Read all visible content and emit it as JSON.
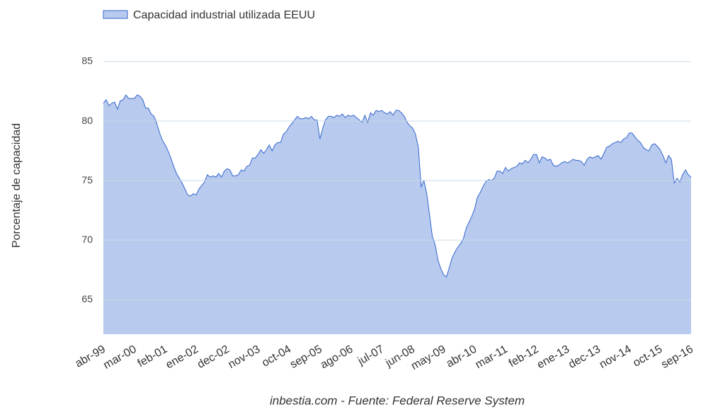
{
  "chart_data": {
    "type": "area",
    "legend_label": "Capacidad industrial utilizada EEUU",
    "y_label": "Porcentaje de capacidad",
    "source": "inbestia.com - Fuente: Federal Reserve System",
    "color": "#3366cc",
    "fill": "#b8caee",
    "ylim": [
      62.1,
      85
    ],
    "yticks": [
      65,
      70,
      75,
      80,
      85
    ],
    "grid": true,
    "categories": [
      "abr-99",
      null,
      null,
      null,
      null,
      null,
      null,
      null,
      null,
      null,
      null,
      "mar-00",
      null,
      null,
      null,
      null,
      null,
      null,
      null,
      null,
      null,
      null,
      "feb-01",
      null,
      null,
      null,
      null,
      null,
      null,
      null,
      null,
      null,
      null,
      "ene-02",
      null,
      null,
      null,
      null,
      null,
      null,
      null,
      null,
      null,
      null,
      "dec-02",
      null,
      null,
      null,
      null,
      null,
      null,
      null,
      null,
      null,
      null,
      "nov-03",
      null,
      null,
      null,
      null,
      null,
      null,
      null,
      null,
      null,
      null,
      "oct-04",
      null,
      null,
      null,
      null,
      null,
      null,
      null,
      null,
      null,
      null,
      "sep-05",
      null,
      null,
      null,
      null,
      null,
      null,
      null,
      null,
      null,
      null,
      "ago-06",
      null,
      null,
      null,
      null,
      null,
      null,
      null,
      null,
      null,
      null,
      "jul-07",
      null,
      null,
      null,
      null,
      null,
      null,
      null,
      null,
      null,
      null,
      "jun-08",
      null,
      null,
      null,
      null,
      null,
      null,
      null,
      null,
      null,
      null,
      "may-09",
      null,
      null,
      null,
      null,
      null,
      null,
      null,
      null,
      null,
      null,
      "abr-10",
      null,
      null,
      null,
      null,
      null,
      null,
      null,
      null,
      null,
      null,
      "mar-11",
      null,
      null,
      null,
      null,
      null,
      null,
      null,
      null,
      null,
      null,
      "feb-12",
      null,
      null,
      null,
      null,
      null,
      null,
      null,
      null,
      null,
      null,
      "ene-13",
      null,
      null,
      null,
      null,
      null,
      null,
      null,
      null,
      null,
      null,
      "dec-13",
      null,
      null,
      null,
      null,
      null,
      null,
      null,
      null,
      null,
      null,
      "nov-14",
      null,
      null,
      null,
      null,
      null,
      null,
      null,
      null,
      null,
      null,
      "oct-15",
      null,
      null,
      null,
      null,
      null,
      null,
      null,
      null,
      null,
      null,
      "sep-16"
    ],
    "values": [
      81.5,
      81.8,
      81.3,
      81.5,
      81.6,
      81.0,
      81.7,
      81.8,
      82.2,
      81.9,
      81.9,
      81.9,
      82.2,
      82.1,
      81.8,
      81.1,
      81.1,
      80.6,
      80.4,
      79.8,
      79.0,
      78.4,
      78.0,
      77.5,
      76.9,
      76.2,
      75.6,
      75.2,
      74.8,
      74.3,
      73.8,
      73.7,
      73.9,
      73.8,
      74.3,
      74.6,
      74.9,
      75.5,
      75.3,
      75.4,
      75.3,
      75.6,
      75.3,
      75.8,
      76.0,
      75.9,
      75.4,
      75.4,
      75.5,
      75.9,
      75.8,
      76.2,
      76.3,
      76.9,
      76.9,
      77.2,
      77.6,
      77.3,
      77.6,
      78.0,
      77.5,
      78.0,
      78.2,
      78.2,
      78.9,
      79.1,
      79.5,
      79.8,
      80.1,
      80.4,
      80.2,
      80.2,
      80.3,
      80.2,
      80.4,
      80.1,
      80.1,
      78.5,
      79.4,
      80.1,
      80.4,
      80.4,
      80.3,
      80.5,
      80.4,
      80.6,
      80.3,
      80.5,
      80.4,
      80.5,
      80.3,
      80.1,
      79.9,
      80.5,
      79.9,
      80.7,
      80.5,
      80.9,
      80.8,
      80.9,
      80.7,
      80.6,
      80.8,
      80.5,
      80.9,
      80.9,
      80.7,
      80.4,
      79.9,
      79.6,
      79.4,
      78.9,
      77.8,
      74.5,
      75.0,
      73.9,
      72.1,
      70.3,
      69.6,
      68.3,
      67.6,
      67.1,
      66.9,
      67.7,
      68.5,
      69.0,
      69.4,
      69.7,
      70.1,
      71.0,
      71.5,
      72.0,
      72.6,
      73.6,
      74.0,
      74.5,
      74.9,
      75.1,
      75.0,
      75.2,
      75.8,
      75.8,
      75.6,
      76.1,
      75.8,
      76.0,
      76.1,
      76.2,
      76.5,
      76.4,
      76.7,
      76.5,
      76.8,
      77.2,
      77.2,
      76.5,
      77.0,
      76.9,
      76.7,
      76.8,
      76.3,
      76.2,
      76.3,
      76.5,
      76.6,
      76.5,
      76.6,
      76.8,
      76.7,
      76.7,
      76.6,
      76.3,
      76.8,
      77.0,
      76.9,
      77.0,
      77.1,
      76.8,
      77.3,
      77.8,
      77.9,
      78.1,
      78.2,
      78.3,
      78.2,
      78.5,
      78.6,
      79.0,
      79.0,
      78.7,
      78.4,
      78.2,
      77.8,
      77.6,
      77.5,
      78.0,
      78.1,
      77.9,
      77.6,
      77.1,
      76.5,
      77.1,
      76.8,
      74.8,
      75.2,
      74.9,
      75.5,
      75.9,
      75.5,
      75.3
    ]
  }
}
